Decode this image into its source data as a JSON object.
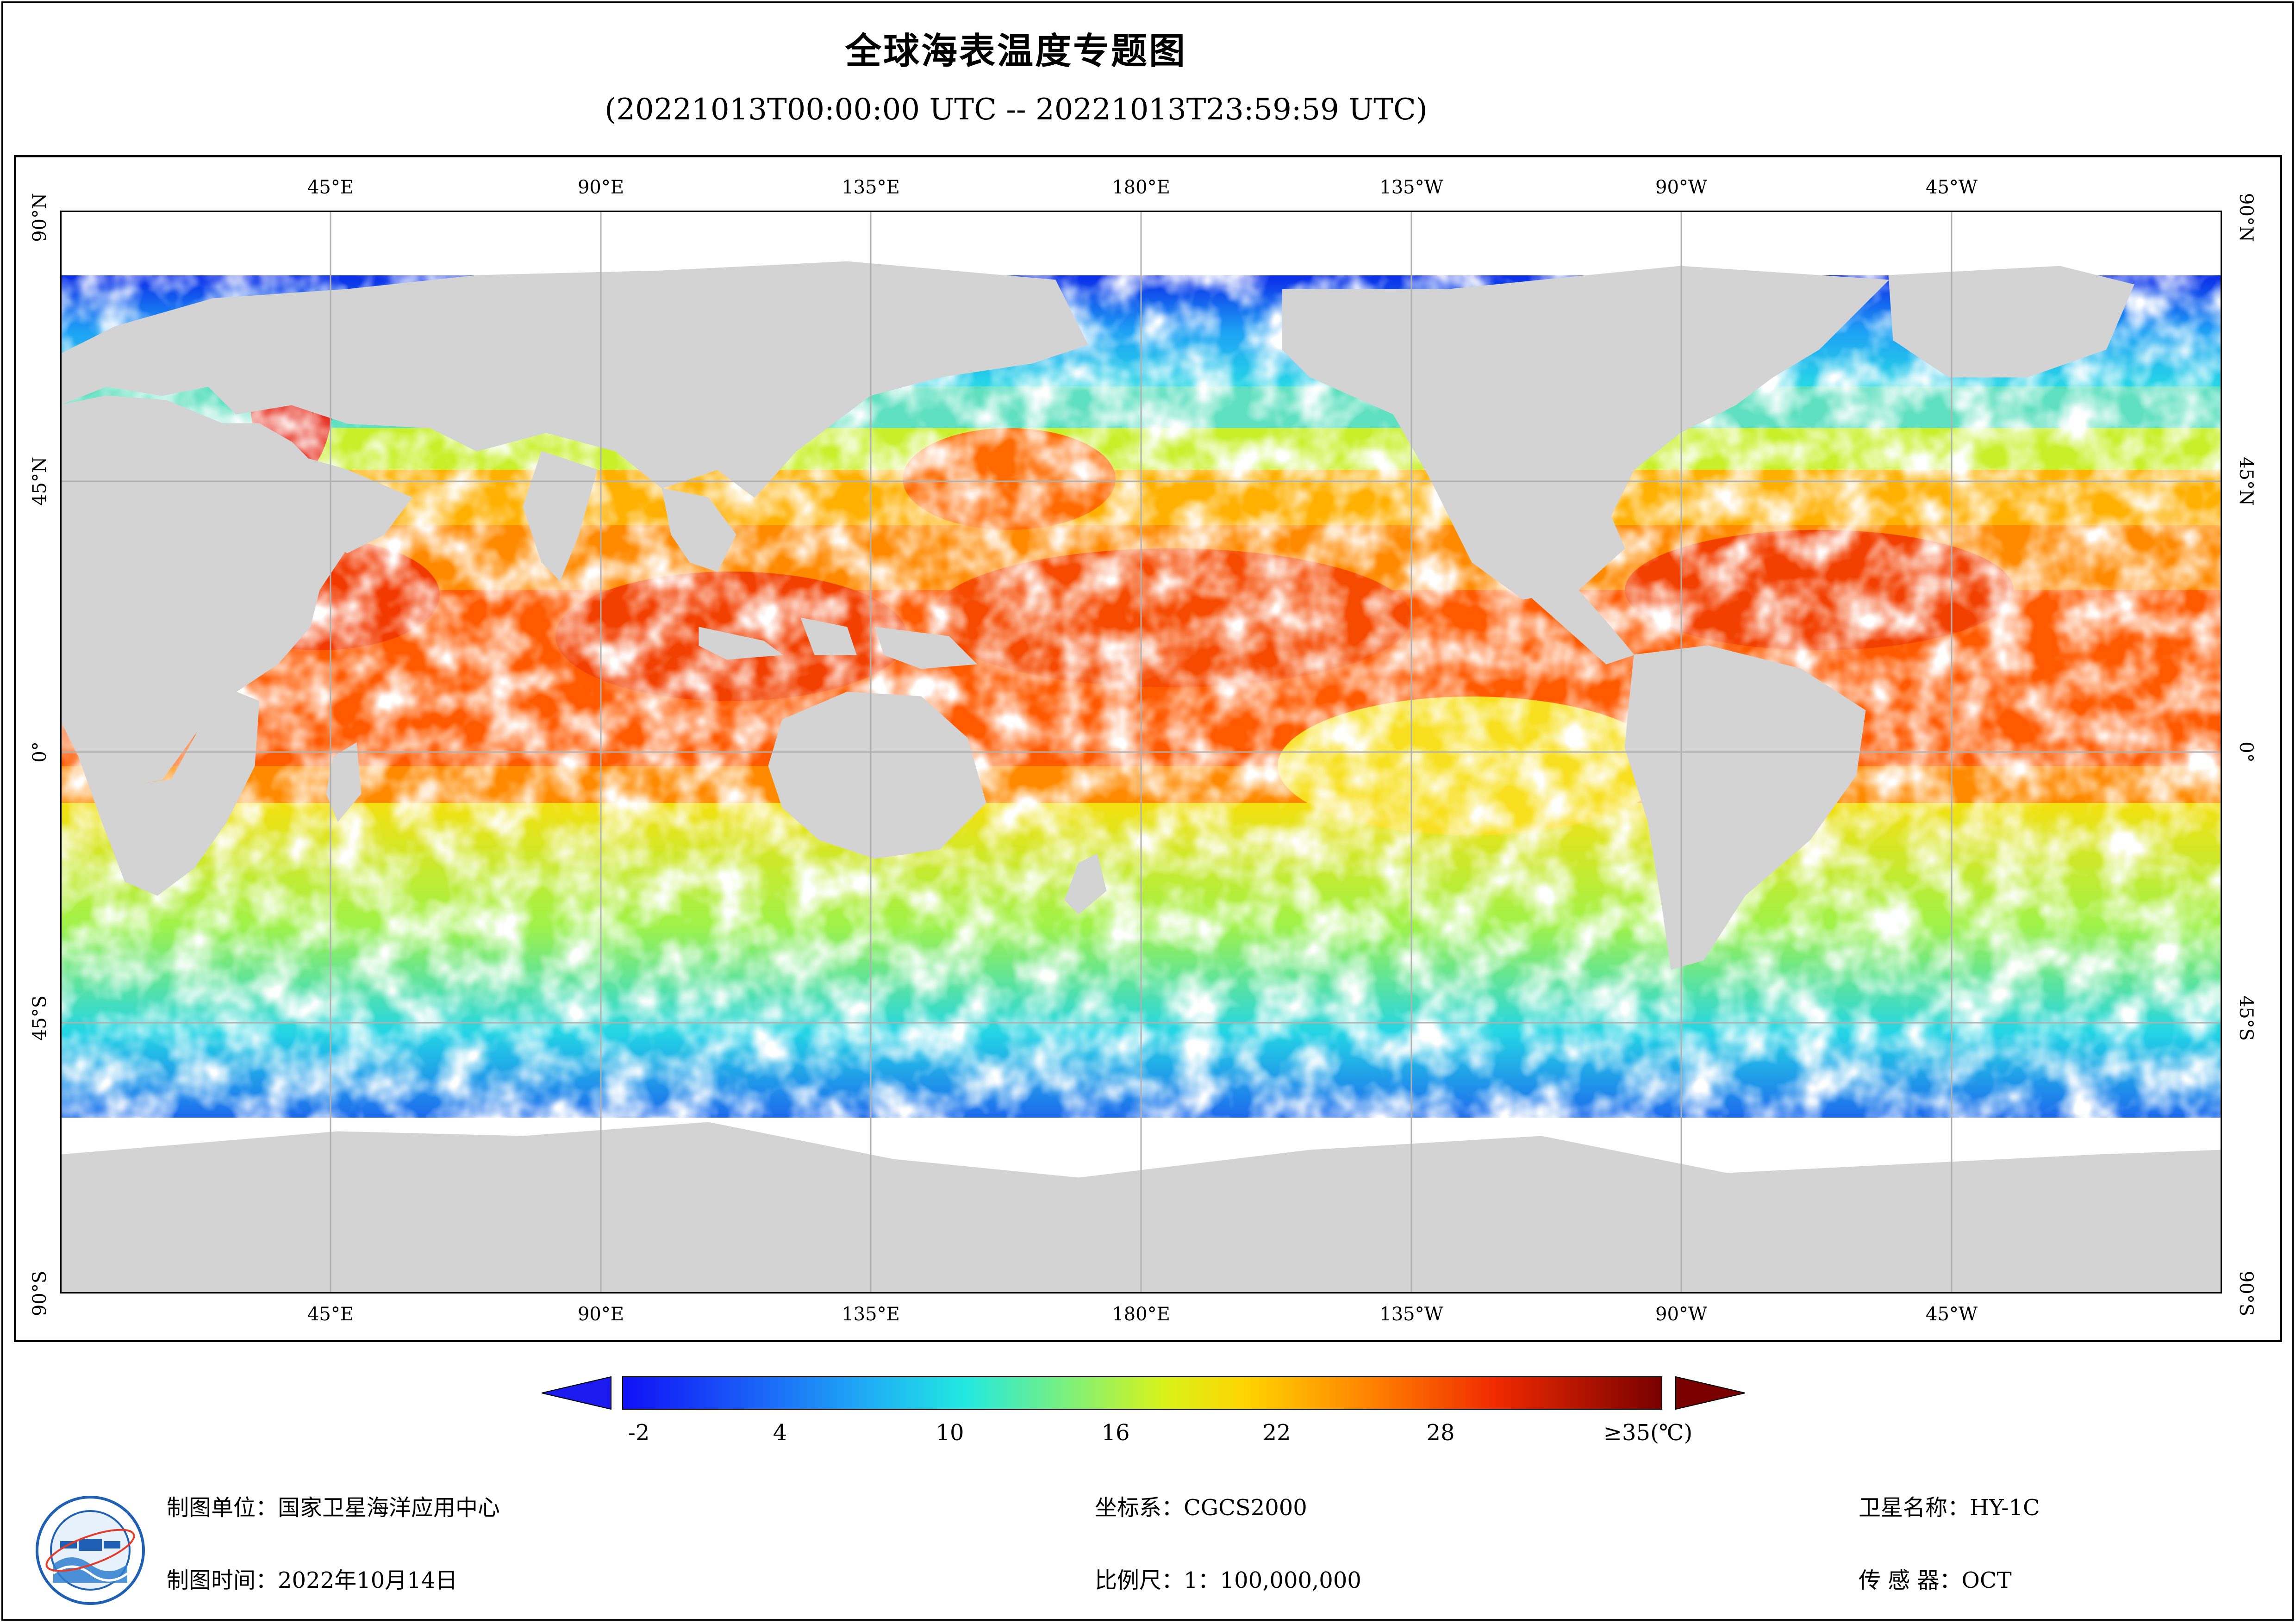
{
  "header": {
    "title": "全球海表温度专题图",
    "time_range": "(20221013T00:00:00 UTC -- 20221013T23:59:59 UTC)"
  },
  "map": {
    "top_lon_labels": [
      "45°E",
      "90°E",
      "135°E",
      "180°E",
      "135°W",
      "90°W",
      "45°W"
    ],
    "bottom_lon_labels": [
      "45°E",
      "90°E",
      "135°E",
      "180°E",
      "135°W",
      "90°W",
      "45°W"
    ],
    "lat_labels": [
      "90°N",
      "45°N",
      "0°",
      "45°S",
      "90°S"
    ],
    "land_color": "#d3d3d3",
    "ice_color": "#ffffff",
    "grid_color": "#b0b0b0"
  },
  "colorbar": {
    "tick_labels": [
      "-2",
      "4",
      "10",
      "16",
      "22",
      "28",
      "≥35(℃)"
    ],
    "min": -2,
    "max": 35,
    "unit": "℃",
    "under_color": "#1b1bf0",
    "over_color": "#7a0000"
  },
  "footer": {
    "org": "制图单位：国家卫星海洋应用中心",
    "date": "制图时间：2022年10月14日",
    "crs": "坐标系：CGCS2000",
    "scale": "比例尺：1：100,000,000",
    "satellite": "卫星名称：HY-1C",
    "sensor": "传 感 器：OCT"
  },
  "logo": {
    "name": "national-satellite-ocean-application-service-logo"
  }
}
